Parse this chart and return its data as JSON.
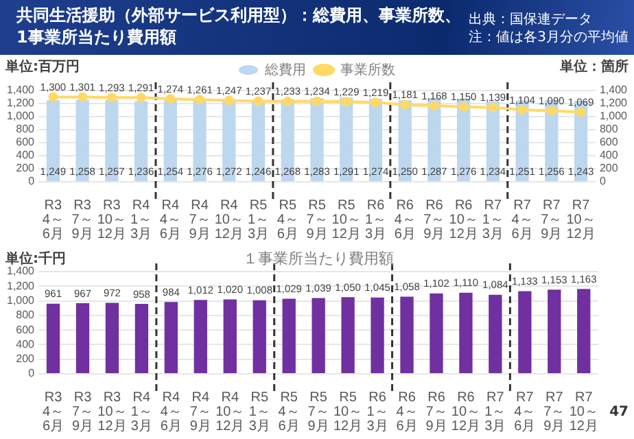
{
  "chart_data": [
    {
      "type": "bar",
      "title": "共同生活援助（外部サービス利用型）：総費用、事業所数、1事業所当たり費用額",
      "ylabel": "単位:百万円",
      "y2label": "単位：箇所",
      "categories": [
        "R3\n4～6月",
        "R3\n7～9月",
        "R3\n10～12月",
        "R4\n1～3月",
        "R4\n4～6月",
        "R4\n7～9月",
        "R4\n10～12月",
        "R5\n1～3月",
        "R5\n4～6月",
        "R5\n7～9月",
        "R5\n10～12月",
        "R6\n1～3月",
        "R6\n4～6月",
        "R6\n7～9月",
        "R6\n10～12月",
        "R7\n1～3月",
        "R7\n4～6月",
        "R7\n7～9月",
        "R7\n10～12月"
      ],
      "series": [
        {
          "name": "総費用",
          "type": "bar",
          "color": "#bdd7ee",
          "values": [
            1249,
            1258,
            1257,
            1236,
            1254,
            1276,
            1272,
            1246,
            1268,
            1283,
            1291,
            1274,
            1250,
            1287,
            1276,
            1234,
            1251,
            1256,
            1243
          ],
          "value_labels": [
            "1,249",
            "1,258",
            "1,257",
            "1,236",
            "1,254",
            "1,276",
            "1,272",
            "1,246",
            "1,268",
            "1,283",
            "1,291",
            "1,274",
            "1,250",
            "1,287",
            "1,276",
            "1,234",
            "1,251",
            "1,256",
            "1,243"
          ]
        },
        {
          "name": "事業所数",
          "type": "line",
          "axis": "y2",
          "color": "#ffd966",
          "values": [
            1300,
            1301,
            1293,
            1291,
            1274,
            1261,
            1247,
            1237,
            1233,
            1234,
            1229,
            1219,
            1181,
            1168,
            1150,
            1139,
            1104,
            1090,
            1069
          ],
          "value_labels": [
            "1,300",
            "1,301",
            "1,293",
            "1,291",
            "1,274",
            "1,261",
            "1,247",
            "1,237",
            "1,233",
            "1,234",
            "1,229",
            "1,219",
            "1,181",
            "1,168",
            "1,150",
            "1,139",
            "1,104",
            "1,090",
            "1,069"
          ]
        }
      ],
      "ylim": [
        0,
        1400
      ],
      "yticks": [
        0,
        200,
        400,
        600,
        800,
        {
          "value": 1000,
          "label": "1,000"
        },
        {
          "value": 1200,
          "label": "1,200"
        },
        {
          "value": 1400,
          "label": "1,400"
        }
      ],
      "y2lim": [
        0,
        1400
      ],
      "y2ticks": [
        0,
        200,
        400,
        600,
        800,
        {
          "value": 1000,
          "label": "1,000"
        },
        {
          "value": 1200,
          "label": "1,200"
        },
        {
          "value": 1400,
          "label": "1,400"
        }
      ],
      "grid": "y",
      "legend": "top",
      "marker": "circle",
      "annotations": [
        "出典：国保連データ",
        "注：値は各3月分の平均値"
      ]
    },
    {
      "type": "bar",
      "title": "１事業所当たり費用額",
      "ylabel": "単位:千円",
      "categories": [
        "R3\n4～6月",
        "R3\n7～9月",
        "R3\n10～12月",
        "R4\n1～3月",
        "R4\n4～6月",
        "R4\n7～9月",
        "R4\n10～12月",
        "R5\n1～3月",
        "R5\n4～6月",
        "R5\n7～9月",
        "R5\n10～12月",
        "R6\n1～3月",
        "R6\n4～6月",
        "R6\n7～9月",
        "R6\n10～12月",
        "R7\n1～3月",
        "R7\n4～6月",
        "R7\n7～9月",
        "R7\n10～12月"
      ],
      "values": [
        961,
        967,
        972,
        958,
        984,
        1012,
        1020,
        1008,
        1029,
        1039,
        1050,
        1045,
        1058,
        1102,
        1110,
        1084,
        1133,
        1153,
        1163
      ],
      "value_labels": [
        "961",
        "967",
        "972",
        "958",
        "984",
        "1,012",
        "1,020",
        "1,008",
        "1,029",
        "1,039",
        "1,050",
        "1,045",
        "1,058",
        "1,102",
        "1,110",
        "1,084",
        "1,133",
        "1,153",
        "1,163"
      ],
      "color": "#7030a0",
      "ylim": [
        0,
        1400
      ],
      "yticks": [
        0,
        200,
        400,
        600,
        800,
        {
          "value": 1000,
          "label": "1,000"
        },
        {
          "value": 1200,
          "label": "1,200"
        },
        {
          "value": 1400,
          "label": "1,400"
        }
      ],
      "grid": "y",
      "annotations": [
        "47"
      ]
    }
  ]
}
